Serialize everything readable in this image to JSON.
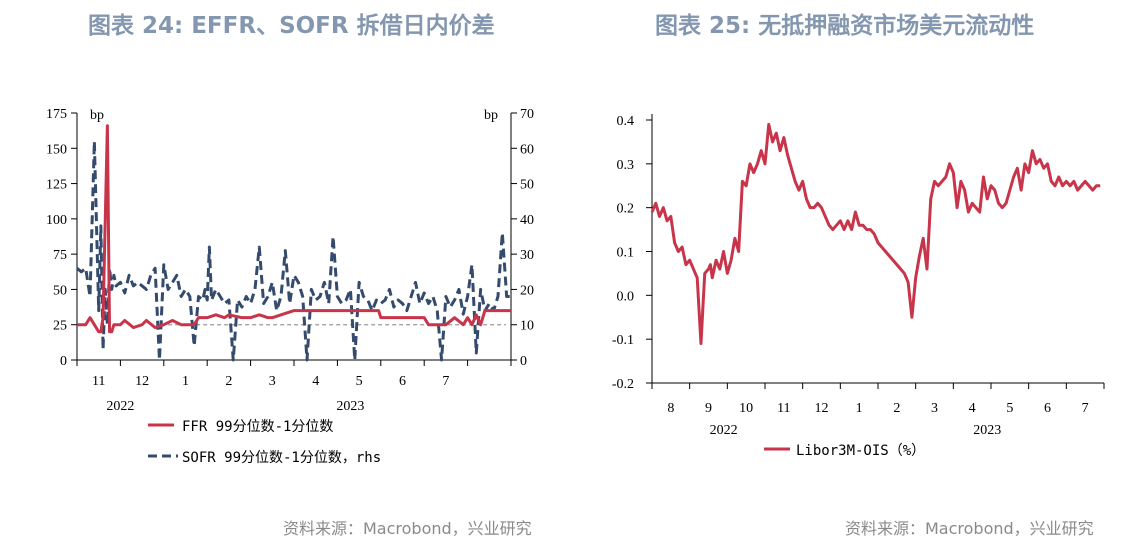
{
  "titles": {
    "left": "图表 24: EFFR、SOFR 拆借日内价差",
    "right": "图表 25: 无抵押融资市场美元流动性"
  },
  "sources": {
    "left": "资料来源：Macrobond，兴业研究",
    "right": "资料来源：Macrobond，兴业研究"
  },
  "colors": {
    "red": "#c8354a",
    "navy": "#344b6e",
    "ref": "#999999"
  },
  "chart_data": [
    {
      "type": "line",
      "title": "图表 24: EFFR、SOFR 拆借日内价差",
      "unit_left": "bp",
      "unit_right": "bp",
      "ylim_left": [
        0,
        175
      ],
      "yticks_left": [
        0,
        25,
        50,
        75,
        100,
        125,
        150,
        175
      ],
      "ylim_right": [
        0,
        70
      ],
      "yticks_right": [
        0,
        10,
        20,
        30,
        40,
        50,
        60,
        70
      ],
      "xlim": [
        0.5,
        10.5
      ],
      "x_ticks": [
        "11",
        "12",
        "1",
        "2",
        "3",
        "4",
        "5",
        "6",
        "7"
      ],
      "x_years": [
        "2022",
        "2023"
      ],
      "reference_line_left": 25,
      "series": [
        {
          "name": "FFR 99分位数-1分位数",
          "axis": "left",
          "style": "solid",
          "x": [
            0.5,
            0.7,
            0.8,
            0.9,
            1.0,
            1.05,
            1.1,
            1.2,
            1.25,
            1.3,
            1.35,
            1.5,
            1.6,
            1.8,
            2.0,
            2.1,
            2.3,
            2.5,
            2.7,
            2.9,
            3.0,
            3.2,
            3.3,
            3.5,
            3.7,
            3.9,
            4.0,
            4.3,
            4.5,
            4.7,
            4.9,
            5.0,
            5.5,
            6.0,
            6.3,
            6.5,
            6.7,
            6.9,
            7.0,
            7.3,
            7.45,
            7.5,
            7.7,
            7.9,
            8.0,
            8.5,
            8.6,
            8.8,
            9.0,
            9.2,
            9.4,
            9.5,
            9.6,
            9.7,
            9.8,
            9.9,
            10.0,
            10.1,
            10.3,
            10.5
          ],
          "values": [
            25,
            25,
            30,
            25,
            20,
            20,
            30,
            166,
            20,
            20,
            25,
            25,
            28,
            23,
            25,
            28,
            23,
            25,
            28,
            25,
            25,
            25,
            30,
            30,
            32,
            30,
            32,
            30,
            30,
            32,
            30,
            30,
            35,
            35,
            35,
            35,
            35,
            35,
            35,
            35,
            35,
            30,
            30,
            30,
            30,
            30,
            25,
            25,
            25,
            30,
            25,
            30,
            25,
            32,
            25,
            35,
            35,
            35,
            35,
            35
          ]
        },
        {
          "name": "SOFR 99分位数-1分位数，rhs",
          "axis": "right",
          "style": "dashed",
          "x": [
            0.5,
            0.6,
            0.7,
            0.8,
            0.9,
            1.0,
            1.05,
            1.1,
            1.15,
            1.2,
            1.25,
            1.3,
            1.35,
            1.4,
            1.5,
            1.6,
            1.7,
            1.8,
            1.9,
            2.0,
            2.1,
            2.2,
            2.3,
            2.4,
            2.5,
            2.6,
            2.7,
            2.8,
            2.9,
            3.0,
            3.1,
            3.2,
            3.3,
            3.4,
            3.45,
            3.5,
            3.55,
            3.6,
            3.7,
            3.8,
            3.9,
            4.0,
            4.1,
            4.2,
            4.3,
            4.4,
            4.5,
            4.6,
            4.7,
            4.8,
            4.9,
            5.0,
            5.1,
            5.2,
            5.3,
            5.4,
            5.5,
            5.6,
            5.7,
            5.8,
            5.9,
            6.0,
            6.1,
            6.2,
            6.3,
            6.4,
            6.5,
            6.6,
            6.7,
            6.8,
            6.9,
            7.0,
            7.1,
            7.2,
            7.3,
            7.4,
            7.5,
            7.6,
            7.7,
            7.8,
            7.9,
            8.0,
            8.1,
            8.2,
            8.3,
            8.4,
            8.5,
            8.6,
            8.7,
            8.8,
            8.9,
            9.0,
            9.1,
            9.2,
            9.3,
            9.4,
            9.5,
            9.6,
            9.7,
            9.8,
            9.9,
            10.0,
            10.1,
            10.2,
            10.3,
            10.4,
            10.5
          ],
          "values": [
            26,
            25,
            26,
            18,
            62,
            14,
            38,
            3,
            20,
            10,
            26,
            20,
            24,
            21,
            22,
            19,
            24,
            21,
            22,
            21,
            20,
            24,
            26,
            0,
            27,
            20,
            22,
            24,
            18,
            20,
            18,
            4,
            18,
            17,
            20,
            17,
            32,
            17,
            20,
            18,
            16,
            17,
            0,
            17,
            15,
            18,
            16,
            20,
            32,
            16,
            18,
            22,
            14,
            18,
            31,
            16,
            24,
            22,
            18,
            0,
            20,
            17,
            18,
            22,
            16,
            35,
            18,
            16,
            17,
            20,
            0,
            22,
            18,
            17,
            14,
            17,
            16,
            17,
            20,
            15,
            17,
            16,
            14,
            18,
            22,
            16,
            19,
            16,
            18,
            14,
            0,
            18,
            15,
            17,
            20,
            13,
            18,
            27,
            2,
            20,
            14,
            16,
            14,
            18,
            36,
            18,
            18
          ]
        }
      ]
    },
    {
      "type": "line",
      "title": "图表 25: 无抵押融资市场美元流动性",
      "ylim": [
        -0.2,
        0.4
      ],
      "yticks": [
        "-0.2",
        "-0.1",
        "0.0",
        "0.1",
        "0.2",
        "0.3",
        "0.4"
      ],
      "xlim": [
        7.5,
        19.5
      ],
      "x_ticks": [
        "8",
        "9",
        "10",
        "11",
        "12",
        "1",
        "2",
        "3",
        "4",
        "5",
        "6",
        "7"
      ],
      "x_years": [
        "2022",
        "2023"
      ],
      "series": [
        {
          "name": "Libor3M-OIS（%）",
          "x": [
            7.5,
            7.6,
            7.7,
            7.8,
            7.9,
            8.0,
            8.1,
            8.2,
            8.3,
            8.4,
            8.5,
            8.6,
            8.7,
            8.8,
            8.9,
            9.0,
            9.05,
            9.1,
            9.2,
            9.3,
            9.4,
            9.5,
            9.6,
            9.7,
            9.8,
            9.9,
            10.0,
            10.1,
            10.2,
            10.3,
            10.4,
            10.5,
            10.6,
            10.7,
            10.8,
            10.9,
            11.0,
            11.1,
            11.2,
            11.3,
            11.4,
            11.5,
            11.6,
            11.7,
            11.8,
            11.9,
            12.0,
            12.1,
            12.2,
            12.3,
            12.4,
            12.5,
            12.6,
            12.7,
            12.8,
            12.9,
            13.0,
            13.1,
            13.2,
            13.3,
            13.4,
            13.5,
            13.6,
            13.7,
            13.8,
            13.9,
            14.0,
            14.1,
            14.2,
            14.3,
            14.4,
            14.5,
            14.6,
            14.7,
            14.8,
            14.9,
            15.0,
            15.1,
            15.2,
            15.3,
            15.4,
            15.5,
            15.6,
            15.7,
            15.8,
            15.9,
            16.0,
            16.1,
            16.2,
            16.3,
            16.4,
            16.5,
            16.6,
            16.7,
            16.8,
            16.9,
            17.0,
            17.1,
            17.2,
            17.3,
            17.4,
            17.5,
            17.6,
            17.7,
            17.8,
            17.9,
            18.0,
            18.1,
            18.2,
            18.3,
            18.4,
            18.5,
            18.6,
            18.7,
            18.8,
            18.9,
            19.0,
            19.1,
            19.2,
            19.3,
            19.4
          ],
          "values": [
            0.19,
            0.21,
            0.18,
            0.2,
            0.17,
            0.18,
            0.12,
            0.1,
            0.11,
            0.07,
            0.08,
            0.06,
            0.04,
            -0.11,
            0.05,
            0.06,
            0.07,
            0.04,
            0.08,
            0.06,
            0.1,
            0.05,
            0.08,
            0.13,
            0.1,
            0.26,
            0.25,
            0.3,
            0.28,
            0.3,
            0.33,
            0.3,
            0.39,
            0.35,
            0.37,
            0.33,
            0.36,
            0.32,
            0.29,
            0.26,
            0.24,
            0.26,
            0.22,
            0.2,
            0.2,
            0.21,
            0.2,
            0.18,
            0.16,
            0.15,
            0.16,
            0.17,
            0.15,
            0.17,
            0.15,
            0.19,
            0.16,
            0.16,
            0.15,
            0.15,
            0.14,
            0.12,
            0.11,
            0.1,
            0.09,
            0.08,
            0.07,
            0.06,
            0.05,
            0.03,
            -0.05,
            0.04,
            0.09,
            0.13,
            0.06,
            0.22,
            0.26,
            0.25,
            0.26,
            0.27,
            0.3,
            0.28,
            0.2,
            0.26,
            0.24,
            0.19,
            0.21,
            0.2,
            0.19,
            0.27,
            0.22,
            0.25,
            0.24,
            0.21,
            0.2,
            0.21,
            0.24,
            0.27,
            0.29,
            0.24,
            0.3,
            0.28,
            0.33,
            0.3,
            0.31,
            0.29,
            0.3,
            0.26,
            0.25,
            0.27,
            0.25,
            0.26,
            0.25,
            0.26,
            0.24,
            0.25,
            0.26,
            0.25,
            0.24,
            0.25,
            0.25
          ]
        }
      ]
    }
  ]
}
